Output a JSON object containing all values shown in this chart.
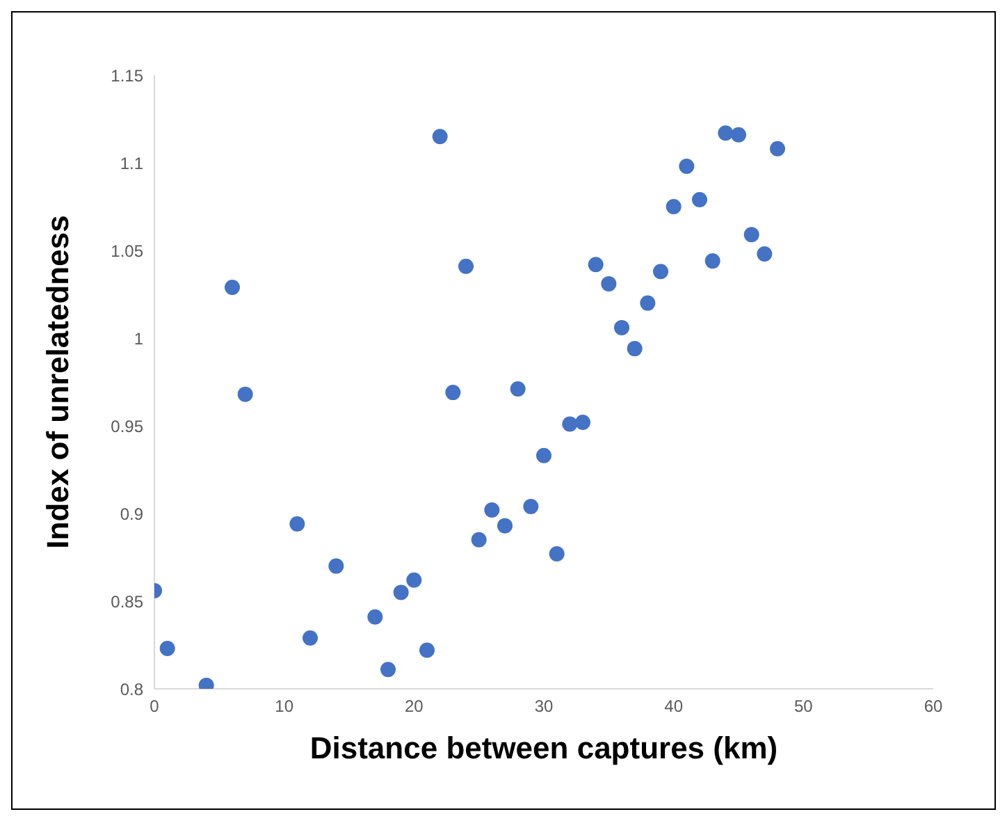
{
  "chart_data": {
    "type": "scatter",
    "xlabel": "Distance between captures (km)",
    "ylabel": "Index of unrelatedness",
    "x": [
      0,
      1,
      4,
      6,
      7,
      11,
      12,
      14,
      17,
      18,
      19,
      20,
      21,
      22,
      23,
      24,
      25,
      26,
      27,
      28,
      29,
      30,
      31,
      32,
      33,
      34,
      35,
      36,
      37,
      38,
      39,
      40,
      41,
      42,
      43,
      44,
      45,
      46,
      47,
      48
    ],
    "series": [
      {
        "color": "#4472c4",
        "values": [
          0.856,
          0.823,
          0.802,
          1.029,
          0.968,
          0.894,
          0.829,
          0.87,
          0.841,
          0.811,
          0.855,
          0.862,
          0.822,
          1.115,
          0.969,
          1.041,
          0.885,
          0.902,
          0.893,
          0.971,
          0.904,
          0.933,
          0.877,
          0.951,
          0.952,
          1.042,
          1.031,
          1.006,
          0.994,
          1.02,
          1.038,
          1.075,
          1.098,
          1.079,
          1.044,
          1.117,
          1.116,
          1.059,
          1.048,
          1.108
        ]
      }
    ],
    "xlim": [
      0,
      60
    ],
    "xticks": [
      0,
      10,
      20,
      30,
      40,
      50,
      60
    ],
    "ylim": [
      0.8,
      1.15
    ],
    "yticks": [
      {
        "value": 0.8,
        "label": "0.8"
      },
      {
        "value": 0.85,
        "label": "0.85"
      },
      {
        "value": 0.9,
        "label": "0.9"
      },
      {
        "value": 0.95,
        "label": "0.95"
      },
      {
        "value": 1,
        "label": "1"
      },
      {
        "value": 1.05,
        "label": "1.05"
      },
      {
        "value": 1.1,
        "label": "1.1"
      },
      {
        "value": 1.15,
        "label": "1.15"
      }
    ],
    "grid": false,
    "legend": false,
    "marker": "circle"
  }
}
